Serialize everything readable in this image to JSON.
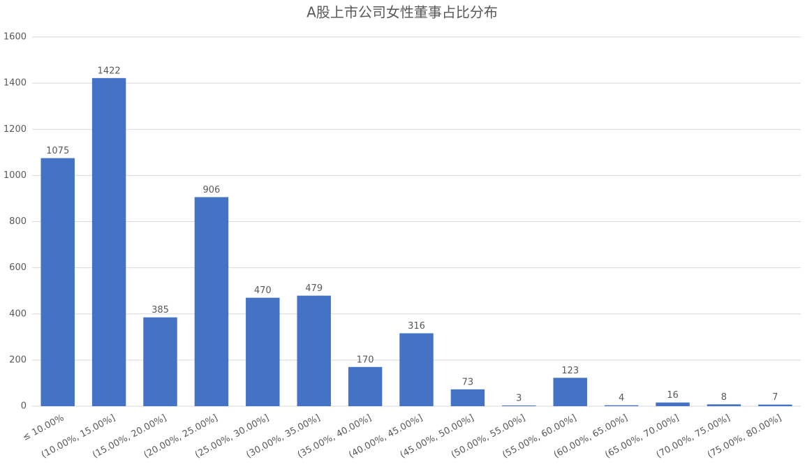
{
  "chart_data": {
    "type": "bar",
    "title": "A股上市公司女性董事占比分布",
    "categories": [
      "≤ 10.00%",
      "(10.00%, 15.00%]",
      "(15.00%, 20.00%]",
      "(20.00%, 25.00%]",
      "(25.00%, 30.00%]",
      "(30.00%, 35.00%]",
      "(35.00%, 40.00%]",
      "(40.00%, 45.00%]",
      "(45.00%, 50.00%]",
      "(50.00%, 55.00%]",
      "(55.00%, 60.00%]",
      "(60.00%, 65.00%]",
      "(65.00%, 70.00%]",
      "(70.00%, 75.00%]",
      "(75.00%, 80.00%]"
    ],
    "values": [
      1075,
      1422,
      385,
      906,
      470,
      479,
      170,
      316,
      73,
      3,
      123,
      4,
      16,
      8,
      7
    ],
    "color": "#4472c4",
    "ylim": [
      0,
      1600
    ],
    "yticks": [
      0,
      200,
      400,
      600,
      800,
      1000,
      1200,
      1400,
      1600
    ],
    "grid": true
  }
}
